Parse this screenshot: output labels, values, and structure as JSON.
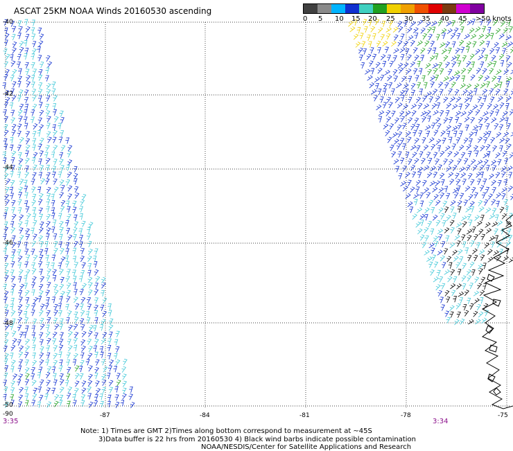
{
  "title": "ASCAT 25KM NOAA Winds 20160530 ascending",
  "legend": {
    "colors": [
      "#404040",
      "#8a8a8a",
      "#00b4ff",
      "#1030d0",
      "#40d0c0",
      "#20a020",
      "#f0d000",
      "#f0a000",
      "#f05000",
      "#e00000",
      "#7a3a10",
      "#d000d0",
      "#8000a0"
    ],
    "labels": [
      "0",
      "5",
      "10",
      "15",
      "20",
      "25",
      "30",
      "35",
      "40",
      "45",
      ">50 knots"
    ]
  },
  "map": {
    "lat_labels": [
      "-40",
      "-42",
      "-44",
      "-46",
      "-48",
      "-50"
    ],
    "lon_labels": [
      "-90",
      "-87",
      "-84",
      "-81",
      "-78",
      "-75"
    ],
    "time_left": "3:35",
    "time_right": "3:34",
    "grid_style": "dotted"
  },
  "notes": {
    "line1": "Note: 1) Times are GMT 2)Times along bottom correspond to measurement at ~45S",
    "line2": "3)Data buffer is 22 hrs from 20160530 4) Black wind barbs indicate possible contamination",
    "line3": "NOAA/NESDIS/Center for Satellite Applications and Research"
  }
}
